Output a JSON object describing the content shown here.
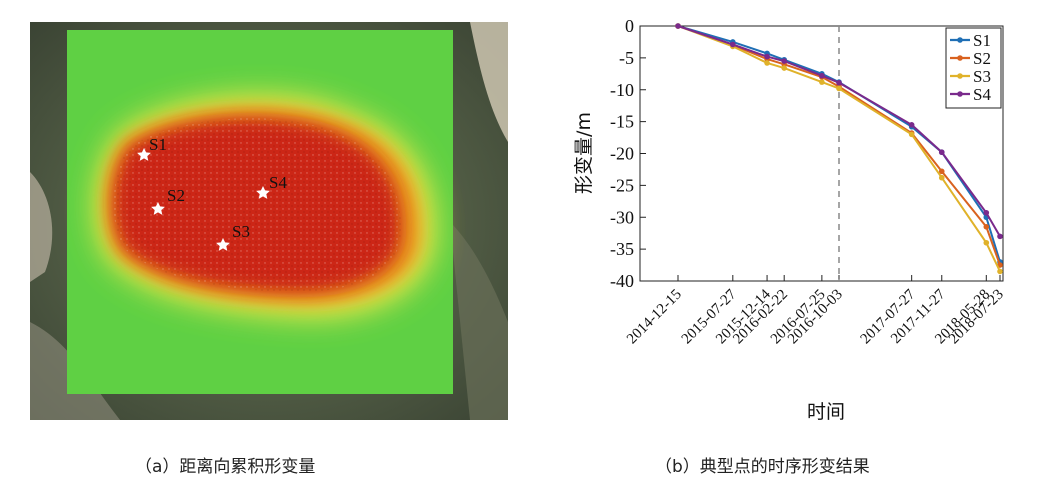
{
  "panel_a": {
    "caption": "（a）距离向累积形变量",
    "points": [
      {
        "label": "S1"
      },
      {
        "label": "S2"
      },
      {
        "label": "S3"
      },
      {
        "label": "S4"
      }
    ]
  },
  "panel_b": {
    "caption": "（b）典型点的时序形变结果"
  },
  "colors": {
    "S1": "#1f6fb5",
    "S2": "#d9621f",
    "S3": "#e0b22a",
    "S4": "#7a2a8c",
    "map_green": "#5fd044",
    "dashed_line": "#888888"
  },
  "chart_data": {
    "type": "line",
    "title": "",
    "xlabel": "时间",
    "ylabel": "形变量/m",
    "ylim": [
      -40,
      0
    ],
    "yticks": [
      0,
      -5,
      -10,
      -15,
      -20,
      -25,
      -30,
      -35,
      -40
    ],
    "xlim": [
      "2014-12-15",
      "2018-07-23"
    ],
    "x": [
      "2014-12-15",
      "2015-07-27",
      "2015-12-14",
      "2016-02-22",
      "2016-07-25",
      "2016-10-03",
      "2017-07-27",
      "2017-11-27",
      "2018-05-28",
      "2018-07-23"
    ],
    "x_ticks": [
      "2014-12-15",
      "2015-07-27",
      "2015-12-14",
      "2016-02-22",
      "2016-07-25",
      "2016-10-03",
      "2017-07-27",
      "2017-11-27",
      "2018-05-28",
      "2018-07-23"
    ],
    "vline": "2016-10-03",
    "legend_position": "top-right",
    "grid": false,
    "series": [
      {
        "name": "S1",
        "values": [
          0,
          -2.5,
          -4.3,
          -5.3,
          -7.5,
          -8.8,
          -15.8,
          -19.8,
          -30.0,
          -37.0
        ]
      },
      {
        "name": "S2",
        "values": [
          0,
          -3.0,
          -5.2,
          -6.0,
          -8.0,
          -9.5,
          -16.8,
          -22.8,
          -31.5,
          -37.5
        ]
      },
      {
        "name": "S3",
        "values": [
          0,
          -3.2,
          -5.8,
          -6.6,
          -8.8,
          -9.8,
          -17.0,
          -23.8,
          -34.0,
          -38.5
        ]
      },
      {
        "name": "S4",
        "values": [
          0,
          -2.9,
          -4.8,
          -5.5,
          -7.8,
          -8.9,
          -15.5,
          -19.8,
          -29.3,
          -33.0
        ]
      }
    ]
  }
}
